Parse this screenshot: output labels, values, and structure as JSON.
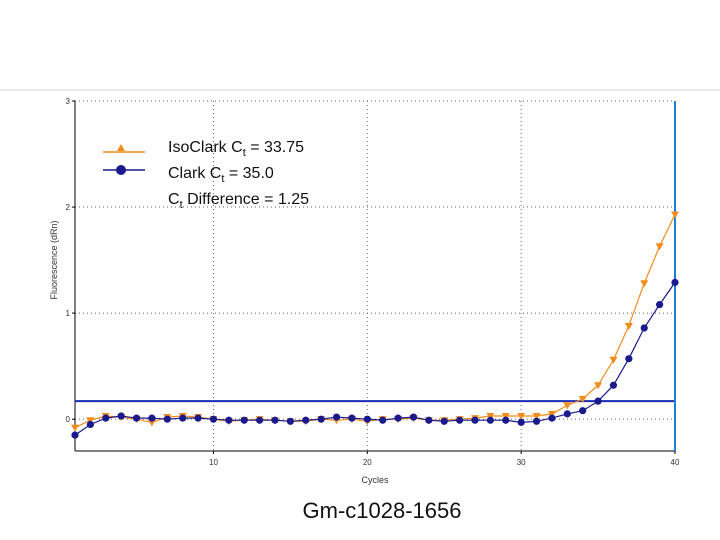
{
  "chart_data": {
    "type": "line",
    "caption": "Gm-c1028-1656",
    "xlabel": "Cycles",
    "ylabel": "Fluorescence (dRn)",
    "xlim": [
      1,
      40
    ],
    "ylim": [
      -0.3,
      3
    ],
    "x_ticks": [
      10,
      20,
      30,
      40
    ],
    "y_ticks": [
      0,
      1,
      2,
      3
    ],
    "grid": true,
    "legend_position": "top-left",
    "threshold": 0.17,
    "cursor_x": 40,
    "colors": {
      "axis": "#000000",
      "grid": "#666666",
      "threshold": "#1a2ab4",
      "cursor": "#1e7fd6",
      "frame": "#cfd3e0"
    },
    "legend": [
      {
        "main": "IsoClark C",
        "sub": "t",
        "tail": " = 33.75",
        "series": 0
      },
      {
        "main": "Clark C",
        "sub": "t",
        "tail": " = 35.0",
        "series": 1
      },
      {
        "main": "C",
        "sub": "t",
        "tail": " Difference = 1.25",
        "series": null
      }
    ],
    "x": [
      1,
      2,
      3,
      4,
      5,
      6,
      7,
      8,
      9,
      10,
      11,
      12,
      13,
      14,
      15,
      16,
      17,
      18,
      19,
      20,
      21,
      22,
      23,
      24,
      25,
      26,
      27,
      28,
      29,
      30,
      31,
      32,
      33,
      34,
      35,
      36,
      37,
      38,
      39,
      40
    ],
    "series": [
      {
        "name": "IsoClark",
        "color": "#f28c1c",
        "marker": "triangle-down",
        "values": [
          -0.08,
          -0.01,
          0.03,
          0.02,
          0.0,
          -0.03,
          0.02,
          0.03,
          0.02,
          0.0,
          -0.02,
          -0.01,
          0.0,
          -0.01,
          -0.02,
          -0.02,
          0.0,
          -0.01,
          0.0,
          -0.02,
          0.0,
          0.0,
          0.01,
          -0.01,
          -0.01,
          0.0,
          0.01,
          0.03,
          0.03,
          0.03,
          0.03,
          0.05,
          0.13,
          0.19,
          0.32,
          0.56,
          0.88,
          1.28,
          1.63,
          1.93
        ]
      },
      {
        "name": "Clark",
        "color": "#1a1a8c",
        "marker": "circle",
        "values": [
          -0.15,
          -0.05,
          0.01,
          0.03,
          0.01,
          0.01,
          0.0,
          0.01,
          0.01,
          0.0,
          -0.01,
          -0.01,
          -0.01,
          -0.01,
          -0.02,
          -0.01,
          0.0,
          0.02,
          0.01,
          0.0,
          -0.01,
          0.01,
          0.02,
          -0.01,
          -0.02,
          -0.01,
          -0.01,
          -0.01,
          -0.01,
          -0.03,
          -0.02,
          0.01,
          0.05,
          0.08,
          0.17,
          0.32,
          0.57,
          0.86,
          1.08,
          1.29
        ]
      }
    ]
  }
}
